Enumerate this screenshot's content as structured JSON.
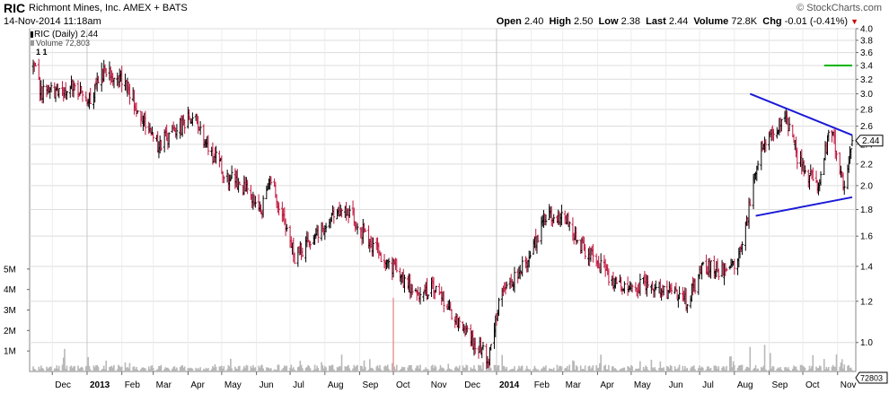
{
  "header": {
    "symbol": "RIC",
    "company": "Richmont Mines, Inc. AMEX + BATS",
    "datetime": "14-Nov-2014 11:18am",
    "brand": "© StockCharts.com",
    "quote": {
      "open_label": "Open",
      "open": "2.40",
      "high_label": "High",
      "high": "2.50",
      "low_label": "Low",
      "low": "2.38",
      "last_label": "Last",
      "last": "2.44",
      "volume_label": "Volume",
      "volume": "72.8K",
      "chg_label": "Chg",
      "chg": "-0.01 (-0.41%)"
    }
  },
  "legend": {
    "price": "RIC (Daily) 2.44",
    "volume": "Volume 72,803",
    "marker": "1 1"
  },
  "colors": {
    "up": "#000000",
    "down": "#c0143c",
    "volume_bar": "#b8b8b8",
    "volume_spike": "#e8a0a0",
    "trendline": "#1a1ad6",
    "resistance": "#00b400",
    "grid": "#dcdcdc"
  },
  "chart_data": {
    "type": "candlestick-ohlc",
    "title": "RIC (Daily) 2.44",
    "price_axis": {
      "scale": "log",
      "range": [
        0.88,
        4.0
      ],
      "ticks": [
        "4.0",
        "3.8",
        "3.6",
        "3.4",
        "3.2",
        "3.0",
        "2.8",
        "2.6",
        "2.4",
        "2.2",
        "2.0",
        "1.8",
        "1.6",
        "1.4",
        "1.2",
        "1.0"
      ]
    },
    "volume_axis": {
      "range_millions": [
        0,
        6
      ],
      "ticks": [
        "5M",
        "4M",
        "3M",
        "2M",
        "1M"
      ]
    },
    "time_axis": {
      "labels": [
        "Dec",
        "2013",
        "Feb",
        "Mar",
        "Apr",
        "May",
        "Jun",
        "Jul",
        "Aug",
        "Sep",
        "Oct",
        "Nov",
        "Dec",
        "2014",
        "Feb",
        "Mar",
        "Apr",
        "May",
        "Jun",
        "Jul",
        "Aug",
        "Sep",
        "Oct",
        "Nov"
      ],
      "bold_labels": [
        "2013",
        "2014"
      ],
      "vertical_gridlines_at": [
        "2013",
        "2014"
      ]
    },
    "price_path_anchors": [
      {
        "date": "2012-11-14",
        "close": 3.4
      },
      {
        "date": "2012-11-20",
        "close": 3.05
      },
      {
        "date": "2012-12-05",
        "close": 3.0
      },
      {
        "date": "2012-12-20",
        "close": 3.1
      },
      {
        "date": "2013-01-05",
        "close": 2.95
      },
      {
        "date": "2013-01-18",
        "close": 3.38
      },
      {
        "date": "2013-02-05",
        "close": 3.12
      },
      {
        "date": "2013-02-20",
        "close": 2.7
      },
      {
        "date": "2013-03-05",
        "close": 2.4
      },
      {
        "date": "2013-03-20",
        "close": 2.55
      },
      {
        "date": "2013-04-05",
        "close": 2.72
      },
      {
        "date": "2013-04-20",
        "close": 2.35
      },
      {
        "date": "2013-05-05",
        "close": 2.1
      },
      {
        "date": "2013-05-20",
        "close": 2.0
      },
      {
        "date": "2013-06-05",
        "close": 1.78
      },
      {
        "date": "2013-06-15",
        "close": 2.05
      },
      {
        "date": "2013-07-05",
        "close": 1.45
      },
      {
        "date": "2013-07-20",
        "close": 1.6
      },
      {
        "date": "2013-08-05",
        "close": 1.72
      },
      {
        "date": "2013-08-20",
        "close": 1.78
      },
      {
        "date": "2013-09-05",
        "close": 1.62
      },
      {
        "date": "2013-09-20",
        "close": 1.45
      },
      {
        "date": "2013-10-05",
        "close": 1.38
      },
      {
        "date": "2013-10-20",
        "close": 1.22
      },
      {
        "date": "2013-11-05",
        "close": 1.28
      },
      {
        "date": "2013-11-20",
        "close": 1.15
      },
      {
        "date": "2013-12-10",
        "close": 1.0
      },
      {
        "date": "2013-12-25",
        "close": 0.94
      },
      {
        "date": "2014-01-05",
        "close": 1.25
      },
      {
        "date": "2014-01-25",
        "close": 1.4
      },
      {
        "date": "2014-02-15",
        "close": 1.77
      },
      {
        "date": "2014-03-05",
        "close": 1.72
      },
      {
        "date": "2014-03-20",
        "close": 1.5
      },
      {
        "date": "2014-04-05",
        "close": 1.4
      },
      {
        "date": "2014-04-20",
        "close": 1.28
      },
      {
        "date": "2014-05-15",
        "close": 1.3
      },
      {
        "date": "2014-06-05",
        "close": 1.25
      },
      {
        "date": "2014-06-20",
        "close": 1.2
      },
      {
        "date": "2014-07-05",
        "close": 1.42
      },
      {
        "date": "2014-07-20",
        "close": 1.36
      },
      {
        "date": "2014-08-05",
        "close": 1.45
      },
      {
        "date": "2014-08-12",
        "close": 1.72
      },
      {
        "date": "2014-08-25",
        "close": 2.4
      },
      {
        "date": "2014-09-05",
        "close": 2.55
      },
      {
        "date": "2014-09-15",
        "close": 2.75
      },
      {
        "date": "2014-09-25",
        "close": 2.3
      },
      {
        "date": "2014-10-05",
        "close": 2.1
      },
      {
        "date": "2014-10-15",
        "close": 2.0
      },
      {
        "date": "2014-10-25",
        "close": 2.55
      },
      {
        "date": "2014-11-02",
        "close": 2.3
      },
      {
        "date": "2014-11-06",
        "close": 1.95
      },
      {
        "date": "2014-11-14",
        "close": 2.44
      }
    ],
    "annotations": [
      {
        "type": "trendline",
        "label": "upper",
        "from": {
          "date": "2014-08-15",
          "price": 3.0
        },
        "to": {
          "date": "2014-11-14",
          "price": 2.5
        }
      },
      {
        "type": "trendline",
        "label": "lower",
        "from": {
          "date": "2014-08-20",
          "price": 1.75
        },
        "to": {
          "date": "2014-11-14",
          "price": 1.9
        }
      },
      {
        "type": "hline",
        "label": "resistance",
        "price": 3.4,
        "from_date": "2014-10-20",
        "to_date": "2014-11-14"
      }
    ],
    "last_price_label": "2.44",
    "last_volume_label": "72803"
  }
}
